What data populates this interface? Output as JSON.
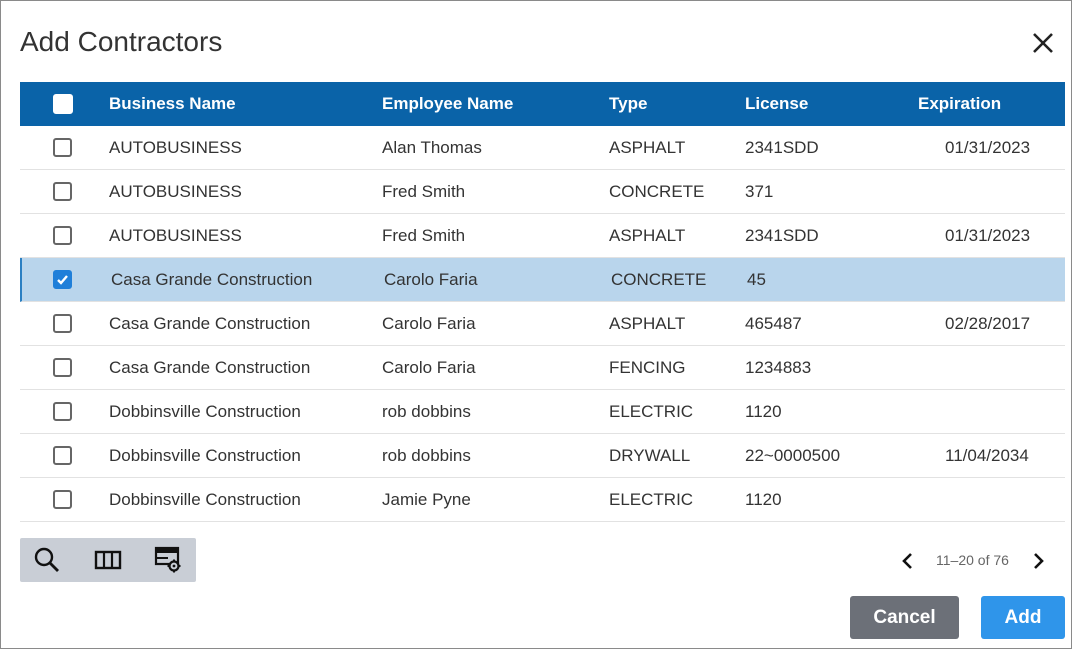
{
  "dialog": {
    "title": "Add Contractors"
  },
  "table": {
    "columns": [
      "Business Name",
      "Employee Name",
      "Type",
      "License",
      "Expiration"
    ],
    "rows": [
      {
        "business": "AUTOBUSINESS",
        "employee": "Alan Thomas",
        "type": "ASPHALT",
        "license": "2341SDD",
        "expiration": "01/31/2023",
        "checked": false
      },
      {
        "business": "AUTOBUSINESS",
        "employee": "Fred Smith",
        "type": "CONCRETE",
        "license": "371",
        "expiration": "",
        "checked": false
      },
      {
        "business": "AUTOBUSINESS",
        "employee": "Fred Smith",
        "type": "ASPHALT",
        "license": "2341SDD",
        "expiration": "01/31/2023",
        "checked": false
      },
      {
        "business": "Casa Grande Construction",
        "employee": "Carolo Faria",
        "type": "CONCRETE",
        "license": "45",
        "expiration": "",
        "checked": true
      },
      {
        "business": "Casa Grande Construction",
        "employee": "Carolo Faria",
        "type": "ASPHALT",
        "license": "465487",
        "expiration": "02/28/2017",
        "checked": false
      },
      {
        "business": "Casa Grande Construction",
        "employee": "Carolo Faria",
        "type": "FENCING",
        "license": "1234883",
        "expiration": "",
        "checked": false
      },
      {
        "business": "Dobbinsville Construction",
        "employee": "rob dobbins",
        "type": "ELECTRIC",
        "license": "1120",
        "expiration": "",
        "checked": false
      },
      {
        "business": "Dobbinsville Construction",
        "employee": "rob dobbins",
        "type": "DRYWALL",
        "license": "22~0000500",
        "expiration": "11/04/2034",
        "checked": false
      },
      {
        "business": "Dobbinsville Construction",
        "employee": "Jamie Pyne",
        "type": "ELECTRIC",
        "license": "1120",
        "expiration": "",
        "checked": false
      }
    ]
  },
  "toolbar": {
    "icons": [
      "search-icon",
      "columns-icon",
      "table-settings-icon"
    ]
  },
  "pager": {
    "label": "11–20 of 76"
  },
  "footer": {
    "cancel_label": "Cancel",
    "add_label": "Add"
  },
  "colors": {
    "header": "#0a63a8",
    "selected_row": "#b9d5ec",
    "add_button": "#2f95ea",
    "cancel_button": "#6c7078"
  }
}
